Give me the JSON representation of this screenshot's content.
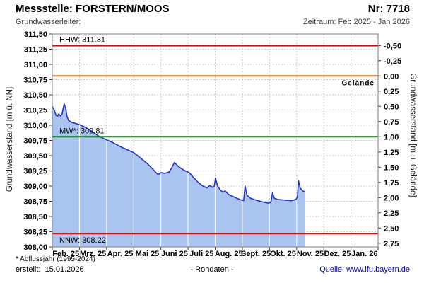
{
  "header": {
    "title": "Messstelle: FORSTERN/MOOS",
    "station_number": "Nr: 7718",
    "aquifer_label": "Grundwasserleiter:",
    "period": "Zeitraum: Feb 2025 - Jan 2026"
  },
  "footer": {
    "footnote": "* Abflussjahr (1995-2024)",
    "created": "erstellt:  15.01.2026",
    "data_type": "- Rohdaten -",
    "source": "Quelle: www.lfu.bayern.de"
  },
  "chart_data": {
    "type": "area",
    "x_categories": [
      "Feb. 25",
      "Mrz. 25",
      "Apr. 25",
      "Mai 25",
      "Juni 25",
      "Juli 25",
      "Aug. 25",
      "Sept. 25",
      "Okt. 25",
      "Nov. 25",
      "Dez. 25",
      "Jan. 26"
    ],
    "y_left": {
      "label": "Grundwasserstand [m ü. NN]",
      "min": 308.0,
      "max": 311.5,
      "step": 0.25,
      "tick_labels_top_down": [
        "311,50",
        "311,25",
        "311,00",
        "310,75",
        "310,50",
        "310,25",
        "310,00",
        "309,75",
        "309,50",
        "309,25",
        "309,00",
        "308,75",
        "308,50",
        "308,25",
        "308,00"
      ]
    },
    "y_right": {
      "label": "Grundwasserstand [m u. Gelände]",
      "min": -0.5,
      "max": 2.75,
      "step": 0.25,
      "surface_elevation": 310.81,
      "tick_labels_top_down": [
        "-0,50",
        "-0,25",
        "0,00",
        "0,25",
        "0,50",
        "0,75",
        "1,00",
        "1,25",
        "1,50",
        "1,75",
        "2,00",
        "2,25",
        "2,50",
        "2,75"
      ]
    },
    "reference_lines": [
      {
        "name": "HHW",
        "label": "HHW: 311.31",
        "value": 311.31,
        "color": "#e60000",
        "width": 2.5,
        "side": "left",
        "above": true,
        "bold": false
      },
      {
        "name": "Gelaende",
        "label": "Gelände",
        "value": 310.81,
        "color": "#ee7621",
        "width": 2,
        "side": "right",
        "above": false,
        "bold": true
      },
      {
        "name": "MW",
        "label": "MW*: 309.81",
        "value": 309.81,
        "color": "#007a00",
        "width": 2,
        "side": "left",
        "above": true,
        "bold": false
      },
      {
        "name": "NNW",
        "label": "NNW: 308.22",
        "value": 308.22,
        "color": "#ff0000",
        "width": 2,
        "side": "left",
        "above": false,
        "bold": false
      }
    ],
    "series": [
      {
        "name": "Grundwasserstand",
        "line_color": "#2433cc",
        "fill_color": "#a8c4ef",
        "points_month_value": [
          [
            0.0,
            310.31
          ],
          [
            0.07,
            310.25
          ],
          [
            0.14,
            310.16
          ],
          [
            0.2,
            310.15
          ],
          [
            0.24,
            310.19
          ],
          [
            0.3,
            310.15
          ],
          [
            0.36,
            310.18
          ],
          [
            0.4,
            310.28
          ],
          [
            0.44,
            310.35
          ],
          [
            0.49,
            310.29
          ],
          [
            0.54,
            310.15
          ],
          [
            0.6,
            310.08
          ],
          [
            0.7,
            310.05
          ],
          [
            0.85,
            310.03
          ],
          [
            1.0,
            310.01
          ],
          [
            1.15,
            309.98
          ],
          [
            1.35,
            309.93
          ],
          [
            1.55,
            309.87
          ],
          [
            1.75,
            309.81
          ],
          [
            2.0,
            309.76
          ],
          [
            2.25,
            309.71
          ],
          [
            2.5,
            309.65
          ],
          [
            2.75,
            309.6
          ],
          [
            3.0,
            309.55
          ],
          [
            3.25,
            309.46
          ],
          [
            3.5,
            309.37
          ],
          [
            3.7,
            309.28
          ],
          [
            3.8,
            309.23
          ],
          [
            3.9,
            309.19
          ],
          [
            4.0,
            309.22
          ],
          [
            4.15,
            309.21
          ],
          [
            4.3,
            309.23
          ],
          [
            4.4,
            309.3
          ],
          [
            4.5,
            309.39
          ],
          [
            4.65,
            309.32
          ],
          [
            4.85,
            309.26
          ],
          [
            5.05,
            309.22
          ],
          [
            5.2,
            309.14
          ],
          [
            5.4,
            309.05
          ],
          [
            5.55,
            309.0
          ],
          [
            5.7,
            308.97
          ],
          [
            5.8,
            309.01
          ],
          [
            5.9,
            308.98
          ],
          [
            5.97,
            309.0
          ],
          [
            6.01,
            309.13
          ],
          [
            6.08,
            309.01
          ],
          [
            6.18,
            308.94
          ],
          [
            6.28,
            308.9
          ],
          [
            6.37,
            308.92
          ],
          [
            6.5,
            308.86
          ],
          [
            6.7,
            308.82
          ],
          [
            6.9,
            308.78
          ],
          [
            7.05,
            308.76
          ],
          [
            7.1,
            309.0
          ],
          [
            7.17,
            308.85
          ],
          [
            7.3,
            308.8
          ],
          [
            7.5,
            308.77
          ],
          [
            7.75,
            308.74
          ],
          [
            7.95,
            308.72
          ],
          [
            8.05,
            308.73
          ],
          [
            8.11,
            308.89
          ],
          [
            8.18,
            308.8
          ],
          [
            8.3,
            308.78
          ],
          [
            8.55,
            308.77
          ],
          [
            8.8,
            308.76
          ],
          [
            8.98,
            308.78
          ],
          [
            9.03,
            308.83
          ],
          [
            9.07,
            309.09
          ],
          [
            9.13,
            308.97
          ],
          [
            9.22,
            308.92
          ],
          [
            9.32,
            308.9
          ]
        ]
      }
    ],
    "grid_color": "#c9c9c9",
    "frame_color": "#808080",
    "tick_color": "#404040",
    "grid_on": true,
    "legend_position": "none"
  }
}
